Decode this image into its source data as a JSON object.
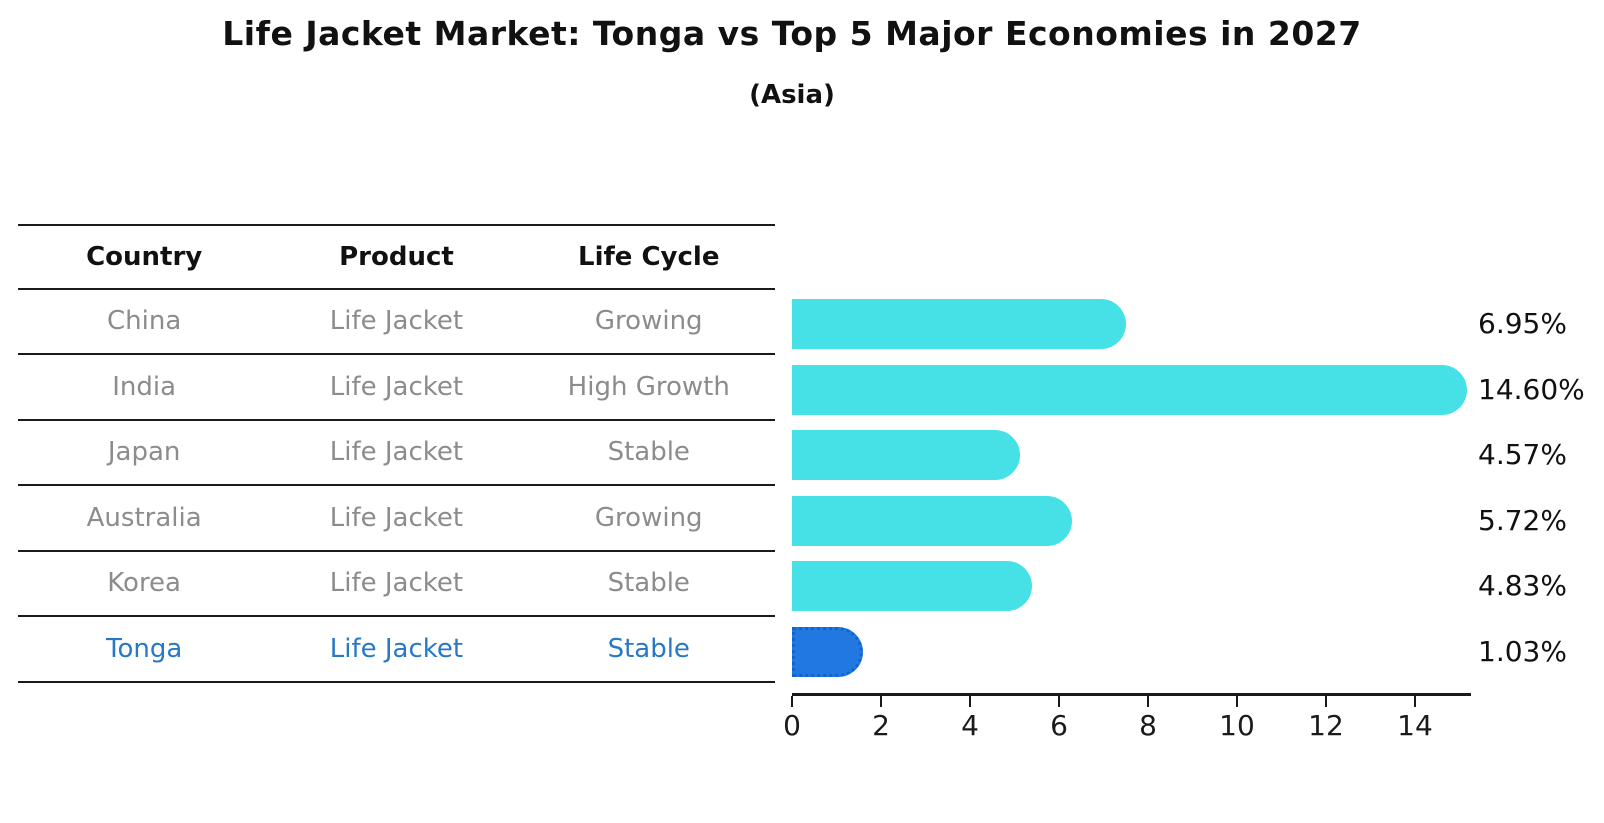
{
  "title": "Life Jacket Market: Tonga vs Top 5 Major Economies in 2027",
  "subtitle": "(Asia)",
  "table": {
    "headers": [
      "Country",
      "Product",
      "Life Cycle"
    ],
    "rows": [
      {
        "country": "China",
        "product": "Life Jacket",
        "life_cycle": "Growing",
        "highlight": false
      },
      {
        "country": "India",
        "product": "Life Jacket",
        "life_cycle": "High Growth",
        "highlight": false
      },
      {
        "country": "Japan",
        "product": "Life Jacket",
        "life_cycle": "Stable",
        "highlight": false
      },
      {
        "country": "Australia",
        "product": "Life Jacket",
        "life_cycle": "Growing",
        "highlight": false
      },
      {
        "country": "Korea",
        "product": "Life Jacket",
        "life_cycle": "Stable",
        "highlight": false
      },
      {
        "country": "Tonga",
        "product": "Life Jacket",
        "life_cycle": "Stable",
        "highlight": true
      }
    ]
  },
  "chart_data": {
    "type": "bar",
    "orientation": "horizontal",
    "title": "Life Jacket Market: Tonga vs Top 5 Major Economies in 2027",
    "subtitle": "(Asia)",
    "categories": [
      "China",
      "India",
      "Japan",
      "Australia",
      "Korea",
      "Tonga"
    ],
    "values": [
      6.95,
      14.6,
      4.57,
      5.72,
      4.83,
      1.03
    ],
    "value_labels": [
      "6.95%",
      "14.60%",
      "4.57%",
      "5.72%",
      "4.83%",
      "1.03%"
    ],
    "x_ticks": [
      0,
      2,
      4,
      6,
      8,
      10,
      12,
      14
    ],
    "xlim": [
      0,
      15.25
    ],
    "grid": false,
    "legend": "none",
    "bar_color": "#45E1E6",
    "highlight_color": "#2078E0",
    "highlight_edge_color": "#1262cf",
    "highlight_index": 5,
    "highlight_text_color": "#2878C8",
    "row_text_color": "#8c8c8c"
  }
}
